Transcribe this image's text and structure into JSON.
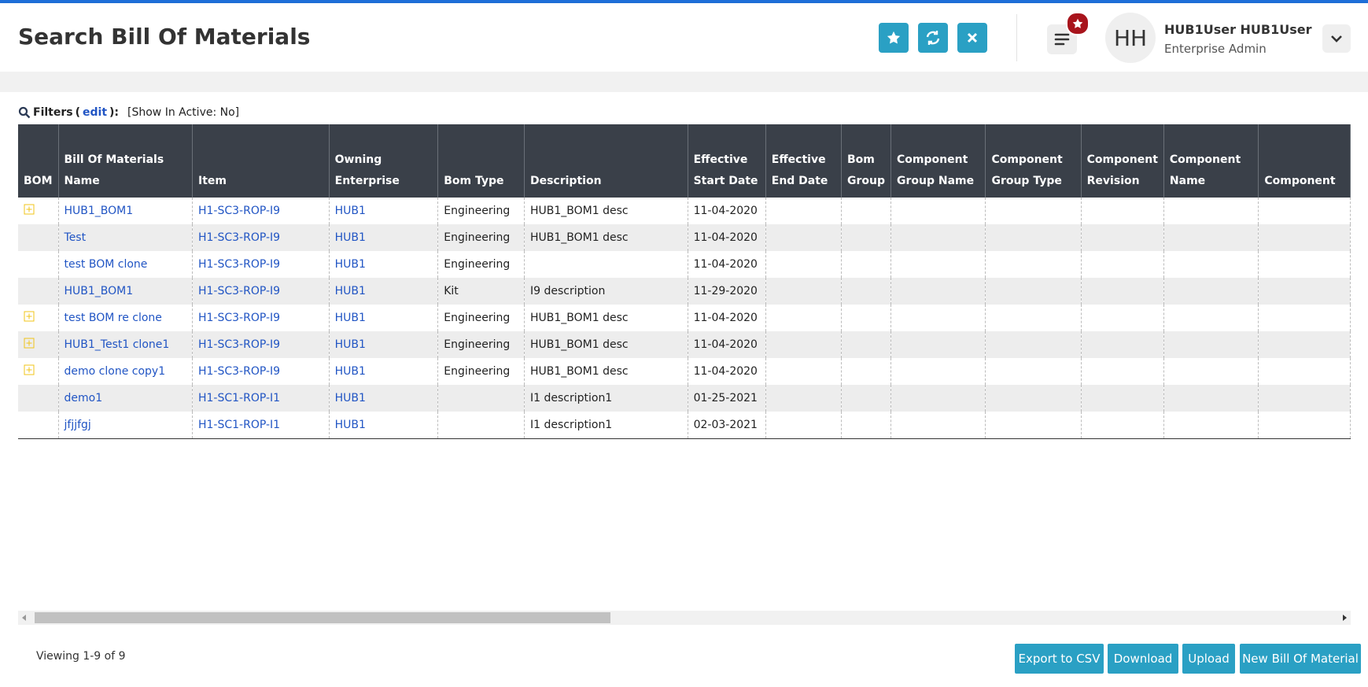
{
  "header": {
    "title": "Search Bill Of Materials",
    "initials": "HH",
    "user_name": "HUB1User HUB1User",
    "user_role": "Enterprise Admin"
  },
  "filters": {
    "label": "Filters",
    "open": "(",
    "edit": "edit",
    "close": "):",
    "value": "[Show In Active: No]"
  },
  "table": {
    "columns": [
      "BOM",
      "Bill Of Materials Name",
      "Item",
      "Owning Enterprise",
      "Bom Type",
      "Description",
      "Effective Start Date",
      "Effective End Date",
      "Bom Group",
      "Component Group Name",
      "Component Group Type",
      "Component Revision",
      "Component Name",
      "Component"
    ],
    "rows": [
      {
        "expand": true,
        "cells": [
          "HUB1_BOM1",
          "H1-SC3-ROP-I9",
          "HUB1",
          "Engineering",
          "HUB1_BOM1 desc",
          "11-04-2020"
        ]
      },
      {
        "expand": false,
        "cells": [
          "Test",
          "H1-SC3-ROP-I9",
          "HUB1",
          "Engineering",
          "HUB1_BOM1 desc",
          "11-04-2020"
        ]
      },
      {
        "expand": false,
        "cells": [
          "test BOM clone",
          "H1-SC3-ROP-I9",
          "HUB1",
          "Engineering",
          null,
          "11-04-2020"
        ]
      },
      {
        "expand": false,
        "cells": [
          "HUB1_BOM1",
          "H1-SC3-ROP-I9",
          "HUB1",
          "Kit",
          "I9 description",
          "11-29-2020"
        ]
      },
      {
        "expand": true,
        "cells": [
          "test BOM re clone",
          "H1-SC3-ROP-I9",
          "HUB1",
          "Engineering",
          "HUB1_BOM1 desc",
          "11-04-2020"
        ]
      },
      {
        "expand": true,
        "cells": [
          "HUB1_Test1 clone1",
          "H1-SC3-ROP-I9",
          "HUB1",
          "Engineering",
          "HUB1_BOM1 desc",
          "11-04-2020"
        ]
      },
      {
        "expand": true,
        "cells": [
          "demo clone copy1",
          "H1-SC3-ROP-I9",
          "HUB1",
          "Engineering",
          "HUB1_BOM1 desc",
          "11-04-2020"
        ]
      },
      {
        "expand": false,
        "cells": [
          "demo1",
          "H1-SC1-ROP-I1",
          "HUB1",
          null,
          "I1 description1",
          "01-25-2021"
        ]
      },
      {
        "expand": false,
        "cells": [
          "jfjjfgj",
          "H1-SC1-ROP-I1",
          "HUB1",
          null,
          "I1 description1",
          "02-03-2021"
        ]
      }
    ]
  },
  "footer": {
    "viewing": "Viewing 1-9 of 9",
    "buttons": [
      "Export to CSV",
      "Download",
      "Upload",
      "New Bill Of Material"
    ]
  }
}
